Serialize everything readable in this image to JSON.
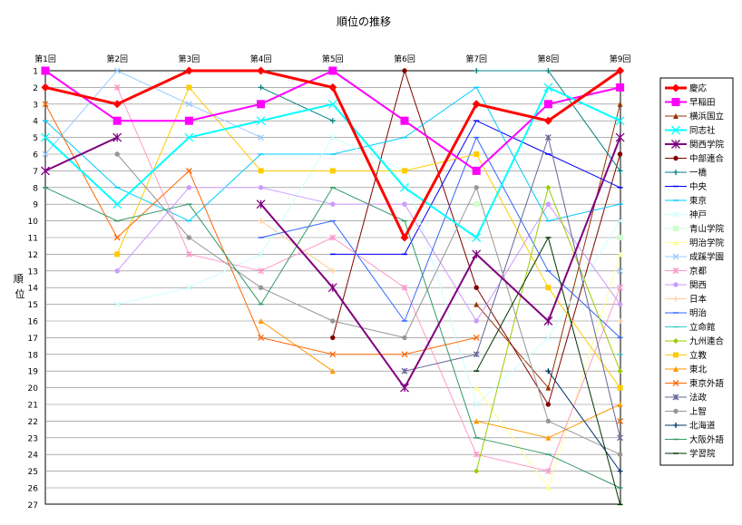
{
  "chart_data": {
    "type": "line",
    "title": "順位の推移",
    "xlabel": "",
    "ylabel": "順位",
    "categories": [
      "第1回",
      "第2回",
      "第3回",
      "第4回",
      "第5回",
      "第6回",
      "第7回",
      "第8回",
      "第9回"
    ],
    "ylim": [
      1,
      27
    ],
    "y_inverted": true,
    "yticks": [
      1,
      2,
      3,
      4,
      5,
      6,
      7,
      8,
      9,
      10,
      11,
      12,
      13,
      14,
      15,
      16,
      17,
      18,
      19,
      20,
      21,
      22,
      23,
      24,
      25,
      26,
      27
    ],
    "grid": "horizontal",
    "legend_position": "right",
    "series": [
      {
        "name": "慶応",
        "color": "#FF0000",
        "marker": "diamond",
        "width": 3,
        "values": [
          2,
          3,
          1,
          1,
          2,
          11,
          3,
          4,
          1
        ]
      },
      {
        "name": "早稲田",
        "color": "#FF00FF",
        "marker": "square",
        "width": 2,
        "values": [
          1,
          4,
          4,
          3,
          1,
          4,
          7,
          3,
          2
        ]
      },
      {
        "name": "横浜国立",
        "color": "#993300",
        "marker": "triangle",
        "width": 1,
        "values": [
          null,
          null,
          null,
          null,
          null,
          null,
          15,
          20,
          3
        ]
      },
      {
        "name": "同志社",
        "color": "#00FFFF",
        "marker": "x",
        "width": 2,
        "values": [
          5,
          9,
          5,
          4,
          3,
          8,
          11,
          2,
          4
        ]
      },
      {
        "name": "関西学院",
        "color": "#800080",
        "marker": "star",
        "width": 2,
        "values": [
          7,
          5,
          null,
          9,
          14,
          20,
          12,
          16,
          5
        ]
      },
      {
        "name": "中部連合",
        "color": "#800000",
        "marker": "circle",
        "width": 1,
        "values": [
          null,
          null,
          null,
          null,
          17,
          1,
          14,
          21,
          6
        ]
      },
      {
        "name": "一橋",
        "color": "#008080",
        "marker": "plus",
        "width": 1,
        "values": [
          null,
          null,
          null,
          2,
          4,
          null,
          1,
          1,
          7
        ]
      },
      {
        "name": "中央",
        "color": "#0000FF",
        "marker": "dash",
        "width": 1,
        "values": [
          null,
          null,
          null,
          null,
          12,
          12,
          4,
          6,
          8
        ]
      },
      {
        "name": "東京",
        "color": "#00CCFF",
        "marker": "dash",
        "width": 1,
        "values": [
          4,
          8,
          10,
          6,
          6,
          5,
          2,
          10,
          9
        ]
      },
      {
        "name": "神戸",
        "color": "#CCFFFF",
        "marker": "x",
        "width": 1,
        "values": [
          null,
          15,
          14,
          12,
          5,
          7,
          21,
          17,
          10
        ]
      },
      {
        "name": "青山学院",
        "color": "#CCFFCC",
        "marker": "square",
        "width": 1,
        "values": [
          null,
          null,
          null,
          null,
          null,
          null,
          9,
          null,
          11
        ]
      },
      {
        "name": "明治学院",
        "color": "#FFFF99",
        "marker": "triangle",
        "width": 1,
        "values": [
          null,
          null,
          null,
          null,
          null,
          null,
          20,
          26,
          12
        ]
      },
      {
        "name": "成蹊学園",
        "color": "#99CCFF",
        "marker": "x",
        "width": 1,
        "values": [
          6,
          1,
          3,
          5,
          null,
          null,
          null,
          null,
          13
        ]
      },
      {
        "name": "京都",
        "color": "#FF99CC",
        "marker": "star",
        "width": 1,
        "values": [
          null,
          2,
          12,
          13,
          11,
          14,
          24,
          25,
          14
        ]
      },
      {
        "name": "関西",
        "color": "#CC99FF",
        "marker": "circle",
        "width": 1,
        "values": [
          null,
          13,
          8,
          8,
          9,
          9,
          16,
          9,
          15
        ]
      },
      {
        "name": "日本",
        "color": "#FFCC99",
        "marker": "plus",
        "width": 1,
        "values": [
          null,
          null,
          null,
          10,
          13,
          null,
          null,
          null,
          16
        ]
      },
      {
        "name": "明治",
        "color": "#3366FF",
        "marker": "dash",
        "width": 1,
        "values": [
          null,
          null,
          null,
          11,
          10,
          16,
          5,
          13,
          17
        ]
      },
      {
        "name": "立命館",
        "color": "#33CCCC",
        "marker": "dash",
        "width": 1,
        "values": [
          null,
          null,
          null,
          null,
          null,
          null,
          null,
          null,
          18
        ]
      },
      {
        "name": "九州連合",
        "color": "#99CC00",
        "marker": "diamond",
        "width": 1,
        "values": [
          null,
          null,
          null,
          null,
          null,
          null,
          25,
          8,
          19
        ]
      },
      {
        "name": "立教",
        "color": "#FFCC00",
        "marker": "square",
        "width": 1,
        "values": [
          null,
          12,
          2,
          7,
          7,
          7,
          6,
          14,
          20
        ]
      },
      {
        "name": "東北",
        "color": "#FF9900",
        "marker": "triangle",
        "width": 1,
        "values": [
          null,
          null,
          null,
          16,
          19,
          null,
          22,
          23,
          21
        ]
      },
      {
        "name": "東京外語",
        "color": "#FF6600",
        "marker": "x",
        "width": 1,
        "values": [
          3,
          11,
          7,
          17,
          18,
          18,
          17,
          null,
          22
        ]
      },
      {
        "name": "法政",
        "color": "#666699",
        "marker": "star",
        "width": 1,
        "values": [
          null,
          null,
          null,
          null,
          null,
          19,
          18,
          5,
          23
        ]
      },
      {
        "name": "上智",
        "color": "#969696",
        "marker": "circle",
        "width": 1,
        "values": [
          null,
          6,
          11,
          14,
          16,
          17,
          8,
          22,
          24
        ]
      },
      {
        "name": "北海道",
        "color": "#003366",
        "marker": "plus",
        "width": 1,
        "values": [
          null,
          null,
          null,
          null,
          null,
          null,
          null,
          19,
          25
        ]
      },
      {
        "name": "大阪外語",
        "color": "#339966",
        "marker": "dash",
        "width": 1,
        "values": [
          8,
          10,
          9,
          15,
          8,
          10,
          23,
          24,
          26
        ]
      },
      {
        "name": "学習院",
        "color": "#003300",
        "marker": "dash",
        "width": 1,
        "values": [
          null,
          null,
          null,
          null,
          null,
          null,
          19,
          11,
          27
        ]
      }
    ]
  }
}
